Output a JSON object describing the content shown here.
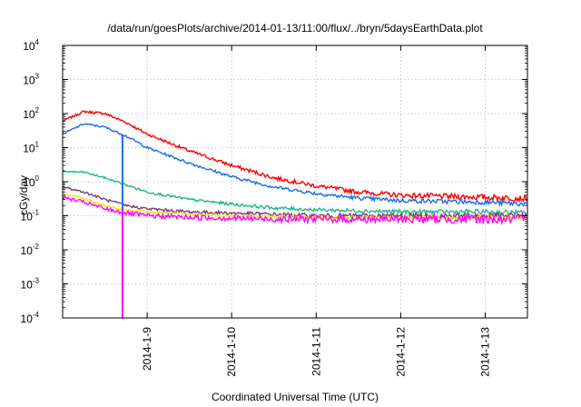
{
  "chart_data": {
    "type": "line",
    "title": "/data/run/goesPlots/archive/2014-01-13/11:00/flux/../bryn/5daysEarthData.plot",
    "xlabel": "Coordinated Universal Time (UTC)",
    "ylabel": "cGy/day",
    "yscale": "log",
    "ylim": [
      0.0001,
      10000
    ],
    "xlim": [
      "2014-01-08 00:00",
      "2014-01-13 12:00"
    ],
    "grid": true,
    "legend": "none",
    "x_ticks": [
      "2014-1-9",
      "2014-1-10",
      "2014-1-11",
      "2014-1-12",
      "2014-1-13"
    ],
    "y_ticks": [
      {
        "base": "10",
        "exp": "-4"
      },
      {
        "base": "10",
        "exp": "-3"
      },
      {
        "base": "10",
        "exp": "-2"
      },
      {
        "base": "10",
        "exp": "-1"
      },
      {
        "base": "10",
        "exp": "0"
      },
      {
        "base": "10",
        "exp": "1"
      },
      {
        "base": "10",
        "exp": "2"
      },
      {
        "base": "10",
        "exp": "3"
      },
      {
        "base": "10",
        "exp": "4"
      }
    ],
    "series": [
      {
        "color": "#ff0000",
        "noise": 0.06,
        "x": [
          "2014-01-08 00:00",
          "2014-01-08 06:00",
          "2014-01-08 12:00",
          "2014-01-08 18:00",
          "2014-01-09 00:00",
          "2014-01-09 12:00",
          "2014-01-10 00:00",
          "2014-01-10 12:00",
          "2014-01-11 00:00",
          "2014-01-11 12:00",
          "2014-01-12 00:00",
          "2014-01-13 00:00",
          "2014-01-13 12:00"
        ],
        "values": [
          60,
          115,
          100,
          55,
          25,
          8,
          3,
          1.3,
          0.75,
          0.5,
          0.4,
          0.35,
          0.32
        ]
      },
      {
        "color": "#1a6ee6",
        "noise": 0.05,
        "x": [
          "2014-01-08 00:00",
          "2014-01-08 06:00",
          "2014-01-08 12:00",
          "2014-01-08 18:00",
          "2014-01-09 00:00",
          "2014-01-09 12:00",
          "2014-01-10 00:00",
          "2014-01-10 12:00",
          "2014-01-11 00:00",
          "2014-01-11 12:00",
          "2014-01-12 00:00",
          "2014-01-13 00:00",
          "2014-01-13 12:00"
        ],
        "values": [
          25,
          50,
          40,
          22,
          10,
          3.5,
          1.4,
          0.7,
          0.45,
          0.33,
          0.28,
          0.25,
          0.22
        ]
      },
      {
        "color": "#1fb88f",
        "noise": 0.05,
        "x": [
          "2014-01-08 00:00",
          "2014-01-08 06:00",
          "2014-01-08 12:00",
          "2014-01-08 18:00",
          "2014-01-09 00:00",
          "2014-01-09 12:00",
          "2014-01-10 00:00",
          "2014-01-10 12:00",
          "2014-01-11 00:00",
          "2014-01-11 12:00",
          "2014-01-12 00:00",
          "2014-01-13 00:00",
          "2014-01-13 12:00"
        ],
        "values": [
          2,
          1.9,
          1.3,
          0.8,
          0.5,
          0.3,
          0.22,
          0.17,
          0.15,
          0.14,
          0.13,
          0.13,
          0.12
        ]
      },
      {
        "color": "#7a3e78",
        "noise": 0.06,
        "x": [
          "2014-01-08 00:00",
          "2014-01-08 06:00",
          "2014-01-08 12:00",
          "2014-01-08 18:00",
          "2014-01-09 00:00",
          "2014-01-09 12:00",
          "2014-01-10 00:00",
          "2014-01-10 12:00",
          "2014-01-11 00:00",
          "2014-01-11 12:00",
          "2014-01-12 00:00",
          "2014-01-13 00:00",
          "2014-01-13 12:00"
        ],
        "values": [
          0.7,
          0.5,
          0.3,
          0.2,
          0.16,
          0.13,
          0.12,
          0.11,
          0.1,
          0.1,
          0.1,
          0.1,
          0.1
        ]
      },
      {
        "color": "#ffe600",
        "noise": 0.04,
        "x": [
          "2014-01-08 00:00",
          "2014-01-08 06:00",
          "2014-01-08 12:00",
          "2014-01-08 18:00",
          "2014-01-09 00:00",
          "2014-01-09 12:00",
          "2014-01-10 00:00",
          "2014-01-10 12:00",
          "2014-01-11 00:00",
          "2014-01-11 12:00",
          "2014-01-12 00:00",
          "2014-01-13 00:00",
          "2014-01-13 12:00"
        ],
        "values": [
          0.45,
          0.32,
          0.2,
          0.15,
          0.13,
          0.11,
          0.1,
          0.095,
          0.09,
          0.09,
          0.09,
          0.09,
          0.09
        ]
      },
      {
        "color": "#ff00ff",
        "noise": 0.1,
        "x": [
          "2014-01-08 00:00",
          "2014-01-08 06:00",
          "2014-01-08 12:00",
          "2014-01-08 18:00",
          "2014-01-09 00:00",
          "2014-01-09 12:00",
          "2014-01-10 00:00",
          "2014-01-10 12:00",
          "2014-01-11 00:00",
          "2014-01-11 12:00",
          "2014-01-12 00:00",
          "2014-01-13 00:00",
          "2014-01-13 12:00"
        ],
        "values": [
          0.35,
          0.25,
          0.16,
          0.12,
          0.1,
          0.09,
          0.085,
          0.08,
          0.08,
          0.08,
          0.08,
          0.08,
          0.08
        ]
      }
    ],
    "drops": [
      {
        "color": "#1a6ee6",
        "x": "2014-01-08 17:00",
        "from": 25,
        "to": 0.1
      },
      {
        "color": "#ff00ff",
        "x": "2014-01-08 17:00",
        "from": 0.15,
        "to": 0.0001
      }
    ]
  }
}
